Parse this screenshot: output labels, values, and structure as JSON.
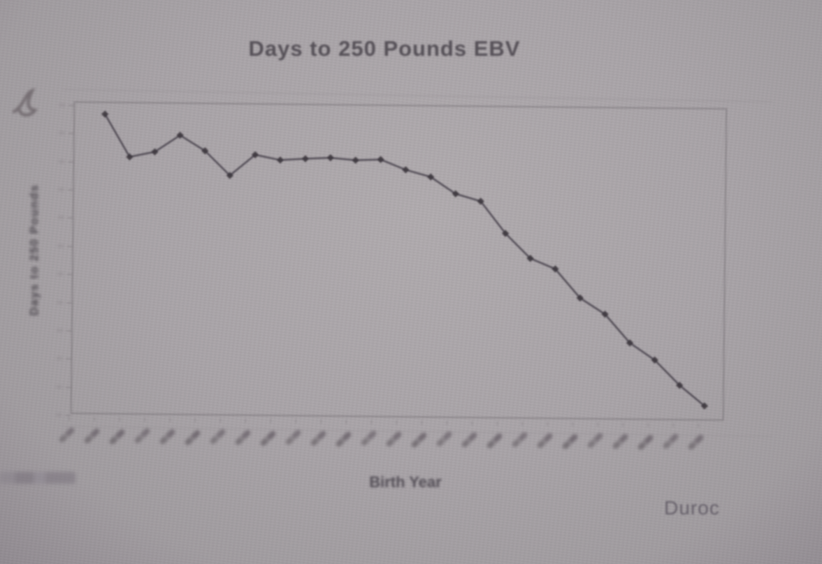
{
  "page": {
    "kind": "blurry photograph of a presentation slide showing a line chart",
    "series_label": "Duroc"
  },
  "chart_data": {
    "type": "line",
    "title": "Days to 250 Pounds EBV",
    "xlabel": "Birth Year",
    "ylabel": "Days to 250 Pounds",
    "legend": [
      "Duroc"
    ],
    "legend_position": "bottom-right",
    "grid": false,
    "marker": "diamond",
    "n_points": 25,
    "x": "25 consecutive birth years, evenly spaced; rotated 45-degree year labels are blurred beyond legibility",
    "x_tick_count": 26,
    "y_tick_count": 12,
    "x_tick_labels_legible": false,
    "y_tick_labels_legible": false,
    "values_norm_pct": [
      96.0,
      82.4,
      84.1,
      89.5,
      84.6,
      76.8,
      83.5,
      81.9,
      82.4,
      82.8,
      82.1,
      82.4,
      79.2,
      77.0,
      71.7,
      69.4,
      59.2,
      51.3,
      48.0,
      38.8,
      33.7,
      24.6,
      19.2,
      11.2,
      4.7
    ],
    "values_note": "values expressed as percent of plot height above the x-axis (axis numbers illegible in photo)",
    "trend": "high start, brief dip and secondary peak, long plateau, then steep steady decline to the final year"
  },
  "annotations": {
    "handwritten_mark": "illegible pen squiggle at top-left",
    "footnote": "illegible small print at bottom-left edge"
  },
  "colors": {
    "photo_bg": "#a9a4a8",
    "ink": "#565158",
    "line": "#45414a",
    "marker": "#3d393f",
    "border": "#8f8a8e"
  }
}
